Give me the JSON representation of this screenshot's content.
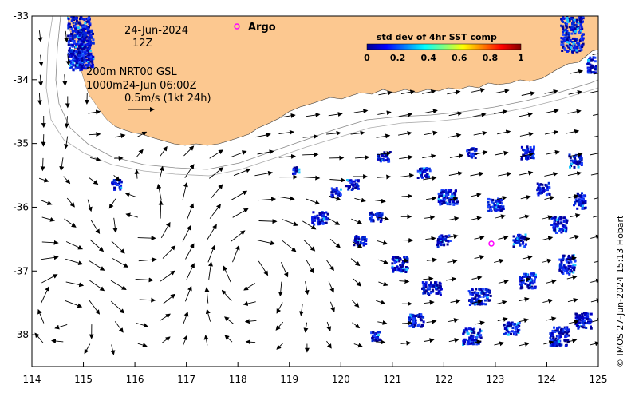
{
  "map": {
    "date_label": "24-Jun-2024",
    "time_label": "12Z",
    "product_line1": "200m  NRT00 GSL",
    "product_line2": "1000m24-Jun 06:00Z",
    "scale_label": "0.5m/s (1kt 24h)",
    "argo_label": "Argo",
    "colorbar_title": "std dev of 4hr SST comp",
    "colorbar_ticks": [
      "0",
      "0.2",
      "0.4",
      "0.6",
      "0.8",
      "1"
    ],
    "colorbar_range": [
      0,
      1
    ],
    "credit": "© IMOS 27-Jun-2024 15:13 Hobart",
    "x_ticks": [
      "114",
      "115",
      "116",
      "117",
      "118",
      "119",
      "120",
      "121",
      "122",
      "123",
      "124",
      "125"
    ],
    "y_ticks": [
      "-33",
      "-34",
      "-35",
      "-36",
      "-37",
      "-38"
    ],
    "lon_range": [
      114,
      125
    ],
    "lat_range": [
      -38.5,
      -33
    ],
    "colors": {
      "land": "#fcc890",
      "ocean": "#ffffff",
      "argo_marker": "#ff00ff",
      "sst_low": "#00008f",
      "sst_high": "#800000"
    }
  }
}
